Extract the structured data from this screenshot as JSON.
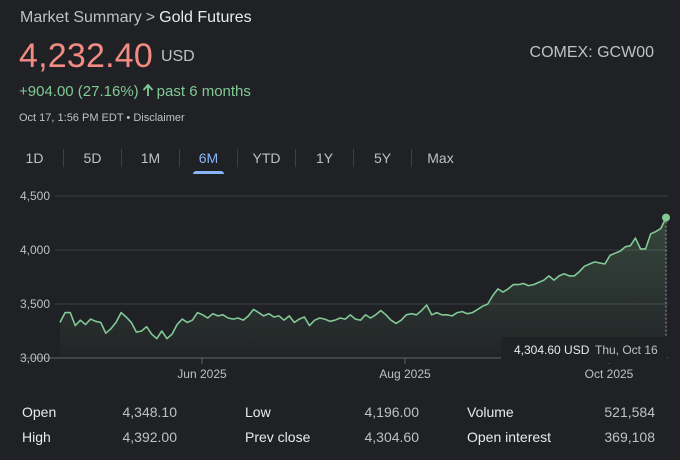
{
  "breadcrumb": {
    "root": "Market Summary",
    "separator": ">",
    "current": "Gold Futures"
  },
  "quote": {
    "price": "4,232.40",
    "currency": "USD",
    "exchange": "COMEX: GCW00",
    "change": "+904.00 (27.16%)",
    "change_period": "past 6 months",
    "timestamp": "Oct 17, 1:56 PM EDT",
    "bullet": "•",
    "disclaimer": "Disclaimer"
  },
  "ranges": [
    "1D",
    "5D",
    "1M",
    "6M",
    "YTD",
    "1Y",
    "5Y",
    "Max"
  ],
  "active_range": "6M",
  "tooltip": {
    "value": "4,304.60 USD",
    "date": "Thu, Oct 16"
  },
  "colors": {
    "price": "#f28b82",
    "positive": "#81c995",
    "accent": "#8ab4f8",
    "background": "#202124"
  },
  "stats": [
    {
      "label": "Open",
      "value": "4,348.10"
    },
    {
      "label": "High",
      "value": "4,392.00"
    },
    {
      "label": "Low",
      "value": "4,196.00"
    },
    {
      "label": "Prev close",
      "value": "4,304.60"
    },
    {
      "label": "Volume",
      "value": "521,584"
    },
    {
      "label": "Open interest",
      "value": "369,108"
    }
  ],
  "chart_data": {
    "type": "area",
    "x_ticks": [
      "Jun 2025",
      "Aug 2025",
      "Oct 2025"
    ],
    "y_ticks": [
      "3,000",
      "3,500",
      "4,000",
      "4,500"
    ],
    "ylim": [
      3000,
      4500
    ],
    "grid": true,
    "series": [
      {
        "values": [
          3330,
          3420,
          3420,
          3300,
          3350,
          3310,
          3360,
          3340,
          3330,
          3230,
          3270,
          3330,
          3420,
          3380,
          3330,
          3240,
          3250,
          3290,
          3220,
          3180,
          3250,
          3180,
          3220,
          3310,
          3360,
          3330,
          3350,
          3420,
          3400,
          3370,
          3410,
          3390,
          3400,
          3370,
          3360,
          3370,
          3350,
          3390,
          3450,
          3420,
          3390,
          3410,
          3380,
          3390,
          3350,
          3390,
          3330,
          3360,
          3380,
          3300,
          3350,
          3370,
          3360,
          3340,
          3350,
          3370,
          3360,
          3400,
          3360,
          3350,
          3400,
          3370,
          3400,
          3440,
          3400,
          3350,
          3320,
          3350,
          3400,
          3410,
          3400,
          3440,
          3490,
          3400,
          3420,
          3400,
          3400,
          3390,
          3420,
          3430,
          3410,
          3420,
          3450,
          3480,
          3500,
          3580,
          3640,
          3610,
          3640,
          3680,
          3680,
          3690,
          3670,
          3680,
          3700,
          3720,
          3760,
          3720,
          3760,
          3780,
          3760,
          3760,
          3800,
          3850,
          3870,
          3890,
          3880,
          3870,
          3950,
          3970,
          3990,
          4030,
          4040,
          4110,
          4010,
          4010,
          4150,
          4170,
          4200,
          4300
        ]
      }
    ]
  }
}
